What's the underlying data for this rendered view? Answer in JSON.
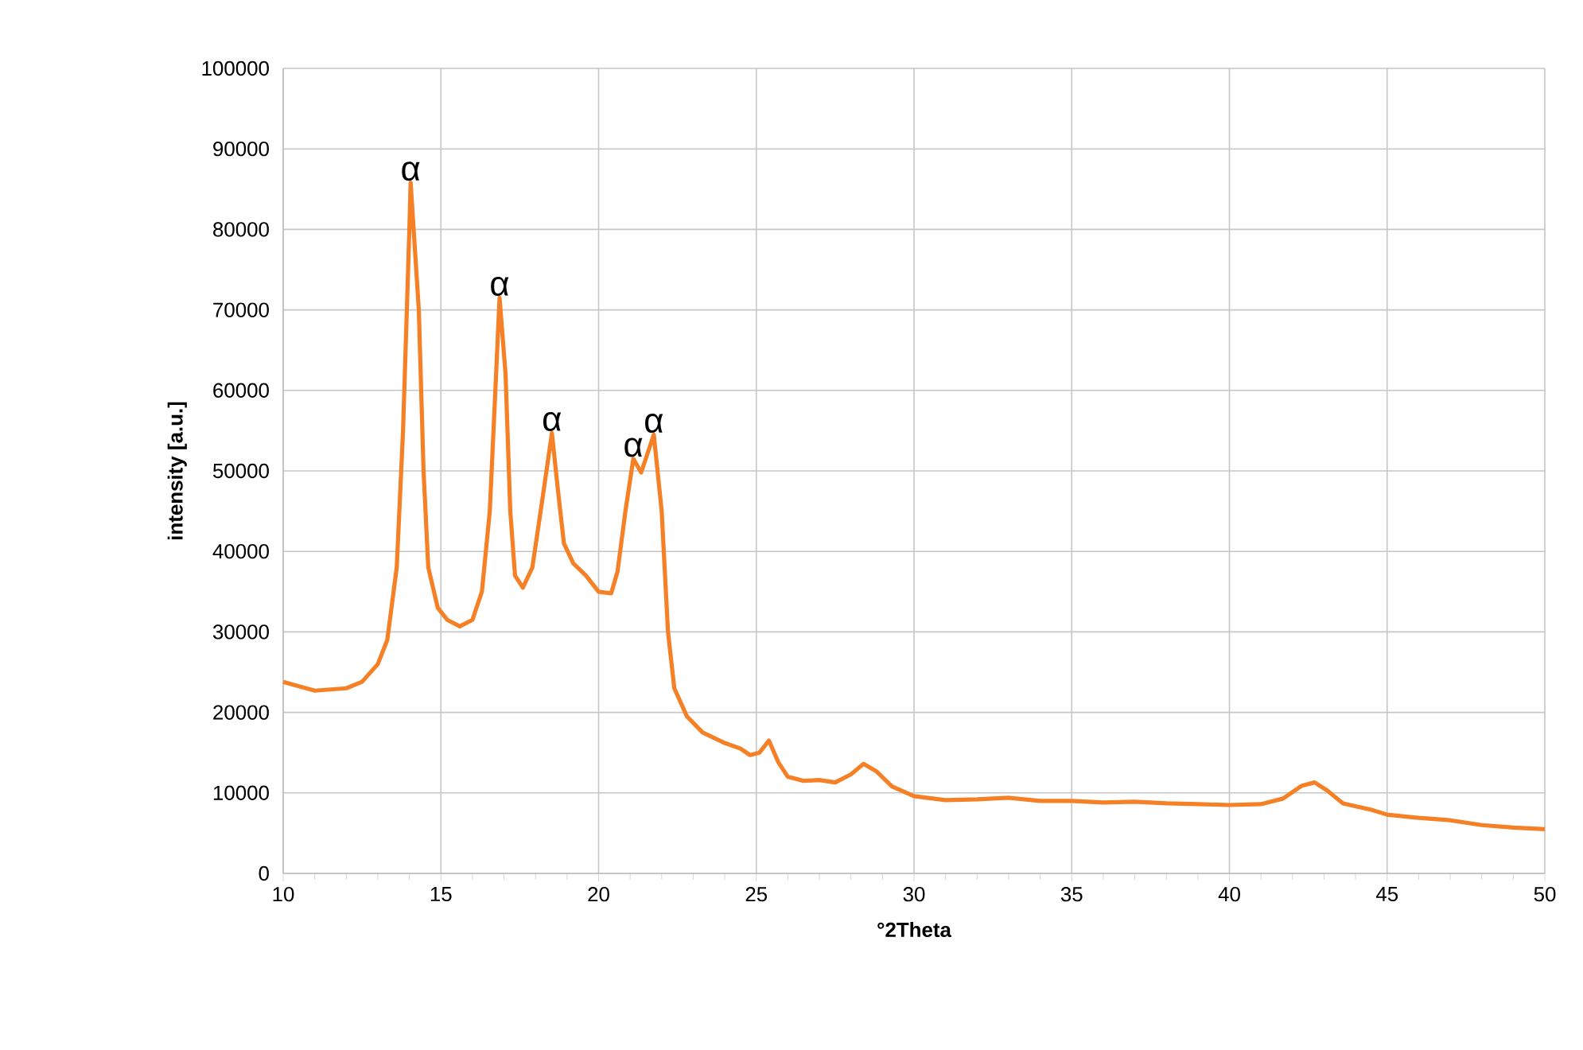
{
  "chart_data": {
    "type": "line",
    "xlabel": "°2Theta",
    "ylabel": "intensity [a.u.]",
    "xlim": [
      10,
      50
    ],
    "xticks": [
      10,
      15,
      20,
      25,
      30,
      35,
      40,
      45,
      50
    ],
    "ylim": [
      0,
      100000
    ],
    "yticks": [
      0,
      10000,
      20000,
      30000,
      40000,
      50000,
      60000,
      70000,
      80000,
      90000,
      100000
    ],
    "grid": true,
    "line_style": "solid",
    "marker": "none",
    "series": [
      {
        "color": "#f58025",
        "x": [
          10,
          11,
          12,
          12.5,
          13,
          13.3,
          13.6,
          13.8,
          14.0,
          14.04,
          14.3,
          14.45,
          14.6,
          14.9,
          15.2,
          15.6,
          16.0,
          16.3,
          16.55,
          16.75,
          16.86,
          17.05,
          17.2,
          17.35,
          17.6,
          17.9,
          18.2,
          18.52,
          18.7,
          18.9,
          19.2,
          19.6,
          20.0,
          20.4,
          20.6,
          20.85,
          21.1,
          21.35,
          21.75,
          22.0,
          22.2,
          22.4,
          22.8,
          23.3,
          24,
          24.5,
          24.8,
          25.1,
          25.4,
          25.7,
          26.0,
          26.5,
          27,
          27.5,
          28,
          28.4,
          28.8,
          29.3,
          30,
          31,
          32,
          33,
          34,
          35,
          36,
          37,
          38,
          39,
          40,
          41,
          41.7,
          42.3,
          42.7,
          43.1,
          43.6,
          44.5,
          45,
          46,
          47,
          48,
          49,
          50
        ],
        "values": [
          23800,
          22700,
          23000,
          23800,
          26000,
          29000,
          38000,
          55000,
          80000,
          85800,
          70000,
          50000,
          38000,
          33000,
          31500,
          30700,
          31500,
          35000,
          45000,
          62000,
          71500,
          62000,
          45000,
          37000,
          35500,
          38000,
          46000,
          54700,
          48000,
          41000,
          38500,
          37000,
          35000,
          34800,
          37500,
          45000,
          51500,
          49800,
          54500,
          45000,
          30000,
          23000,
          19500,
          17500,
          16200,
          15500,
          14700,
          15000,
          16500,
          13800,
          12000,
          11500,
          11600,
          11300,
          12300,
          13600,
          12700,
          10800,
          9600,
          9100,
          9200,
          9400,
          9000,
          9000,
          8800,
          8900,
          8700,
          8600,
          8500,
          8600,
          9300,
          10900,
          11300,
          10300,
          8700,
          7900,
          7300,
          6900,
          6600,
          6000,
          5700,
          5500
        ]
      }
    ],
    "annotations": [
      {
        "text": "α",
        "x": 14.04,
        "y": 85800
      },
      {
        "text": "α",
        "x": 16.86,
        "y": 71500
      },
      {
        "text": "α",
        "x": 18.52,
        "y": 54700
      },
      {
        "text": "α",
        "x": 21.1,
        "y": 51500
      },
      {
        "text": "α",
        "x": 21.75,
        "y": 54500
      }
    ]
  }
}
